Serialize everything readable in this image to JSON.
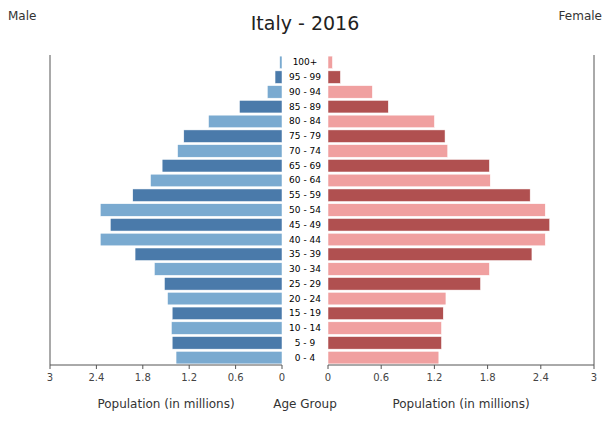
{
  "chart_data": {
    "type": "bar",
    "orientation": "horizontal",
    "title": "Italy - 2016",
    "xlabel_left": "Population (in millions)",
    "xlabel_right": "Population (in millions)",
    "ylabel": "Age Group",
    "categories": [
      "0 - 4",
      "5 - 9",
      "10 - 14",
      "15 - 19",
      "20 - 24",
      "25 - 29",
      "30 - 34",
      "35 - 39",
      "40 - 44",
      "45 - 49",
      "50 - 54",
      "55 - 59",
      "60 - 64",
      "65 - 69",
      "70 - 74",
      "75 - 79",
      "80 - 84",
      "85 - 89",
      "90 - 94",
      "95 - 99",
      "100+"
    ],
    "series": [
      {
        "name": "Male",
        "values": [
          1.37,
          1.42,
          1.43,
          1.42,
          1.48,
          1.52,
          1.65,
          1.9,
          2.35,
          2.22,
          2.35,
          1.93,
          1.7,
          1.55,
          1.35,
          1.27,
          0.95,
          0.55,
          0.19,
          0.09,
          0.03
        ],
        "colors": [
          "#7aaad0",
          "#4a7aaa",
          "#7aaad0",
          "#4a7aaa",
          "#7aaad0",
          "#4a7aaa",
          "#7aaad0",
          "#4a7aaa",
          "#7aaad0",
          "#4a7aaa",
          "#7aaad0",
          "#4a7aaa",
          "#7aaad0",
          "#4a7aaa",
          "#7aaad0",
          "#4a7aaa",
          "#7aaad0",
          "#4a7aaa",
          "#7aaad0",
          "#4a7aaa",
          "#7aaad0"
        ]
      },
      {
        "name": "Female",
        "values": [
          1.25,
          1.28,
          1.28,
          1.3,
          1.33,
          1.72,
          1.82,
          2.3,
          2.45,
          2.5,
          2.45,
          2.28,
          1.83,
          1.82,
          1.35,
          1.32,
          1.2,
          0.68,
          0.5,
          0.14,
          0.05
        ],
        "colors": [
          "#f0a0a0",
          "#b05050",
          "#f0a0a0",
          "#b05050",
          "#f0a0a0",
          "#b05050",
          "#f0a0a0",
          "#b05050",
          "#f0a0a0",
          "#b05050",
          "#f0a0a0",
          "#b05050",
          "#f0a0a0",
          "#b05050",
          "#f0a0a0",
          "#b05050",
          "#f0a0a0",
          "#b05050",
          "#f0a0a0",
          "#b05050",
          "#f0a0a0"
        ]
      }
    ],
    "xlim": [
      0,
      3.0
    ],
    "xticks": [
      0,
      0.6,
      1.2,
      1.8,
      2.4,
      3
    ],
    "grid": false
  }
}
